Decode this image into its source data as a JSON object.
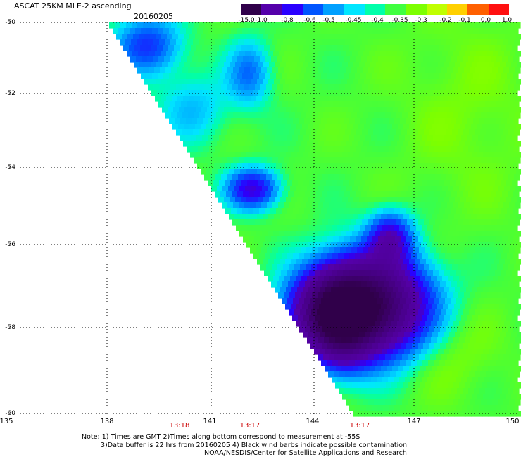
{
  "header": {
    "title": "ASCAT 25KM MLE-2 ascending",
    "date": "20160205"
  },
  "colorbar": {
    "labels": [
      "-15.0",
      "-1.0",
      "-0.8",
      "-0.6",
      "-0.5",
      "-0.45",
      "-0.4",
      "-0.35",
      "-0.3",
      "-0.2",
      "-0.1",
      "0.0",
      "1.0"
    ],
    "colors": [
      "#30004a",
      "#5500aa",
      "#2a00ff",
      "#0055ff",
      "#00a0ff",
      "#00e6ff",
      "#00ffaa",
      "#40ff40",
      "#7dff00",
      "#c0ff00",
      "#ffd000",
      "#ff6000",
      "#ff1010"
    ]
  },
  "map": {
    "lat_labels": [
      "-50",
      "-52",
      "-54",
      "-56",
      "-58",
      "-60"
    ],
    "lon_labels": [
      "135",
      "138",
      "141",
      "144",
      "147",
      "150"
    ],
    "time_labels": [
      "13:18",
      "13:17",
      "13:17"
    ]
  },
  "notes": {
    "line1": "Note: 1) Times are GMT 2)Times along bottom correspond to measurement at -55S",
    "line2": "3)Data buffer is 22 hrs from 20160205 4) Black wind barbs indicate possible contamination",
    "line3": "NOAA/NESDIS/Center for Satellite Applications and Research"
  }
}
